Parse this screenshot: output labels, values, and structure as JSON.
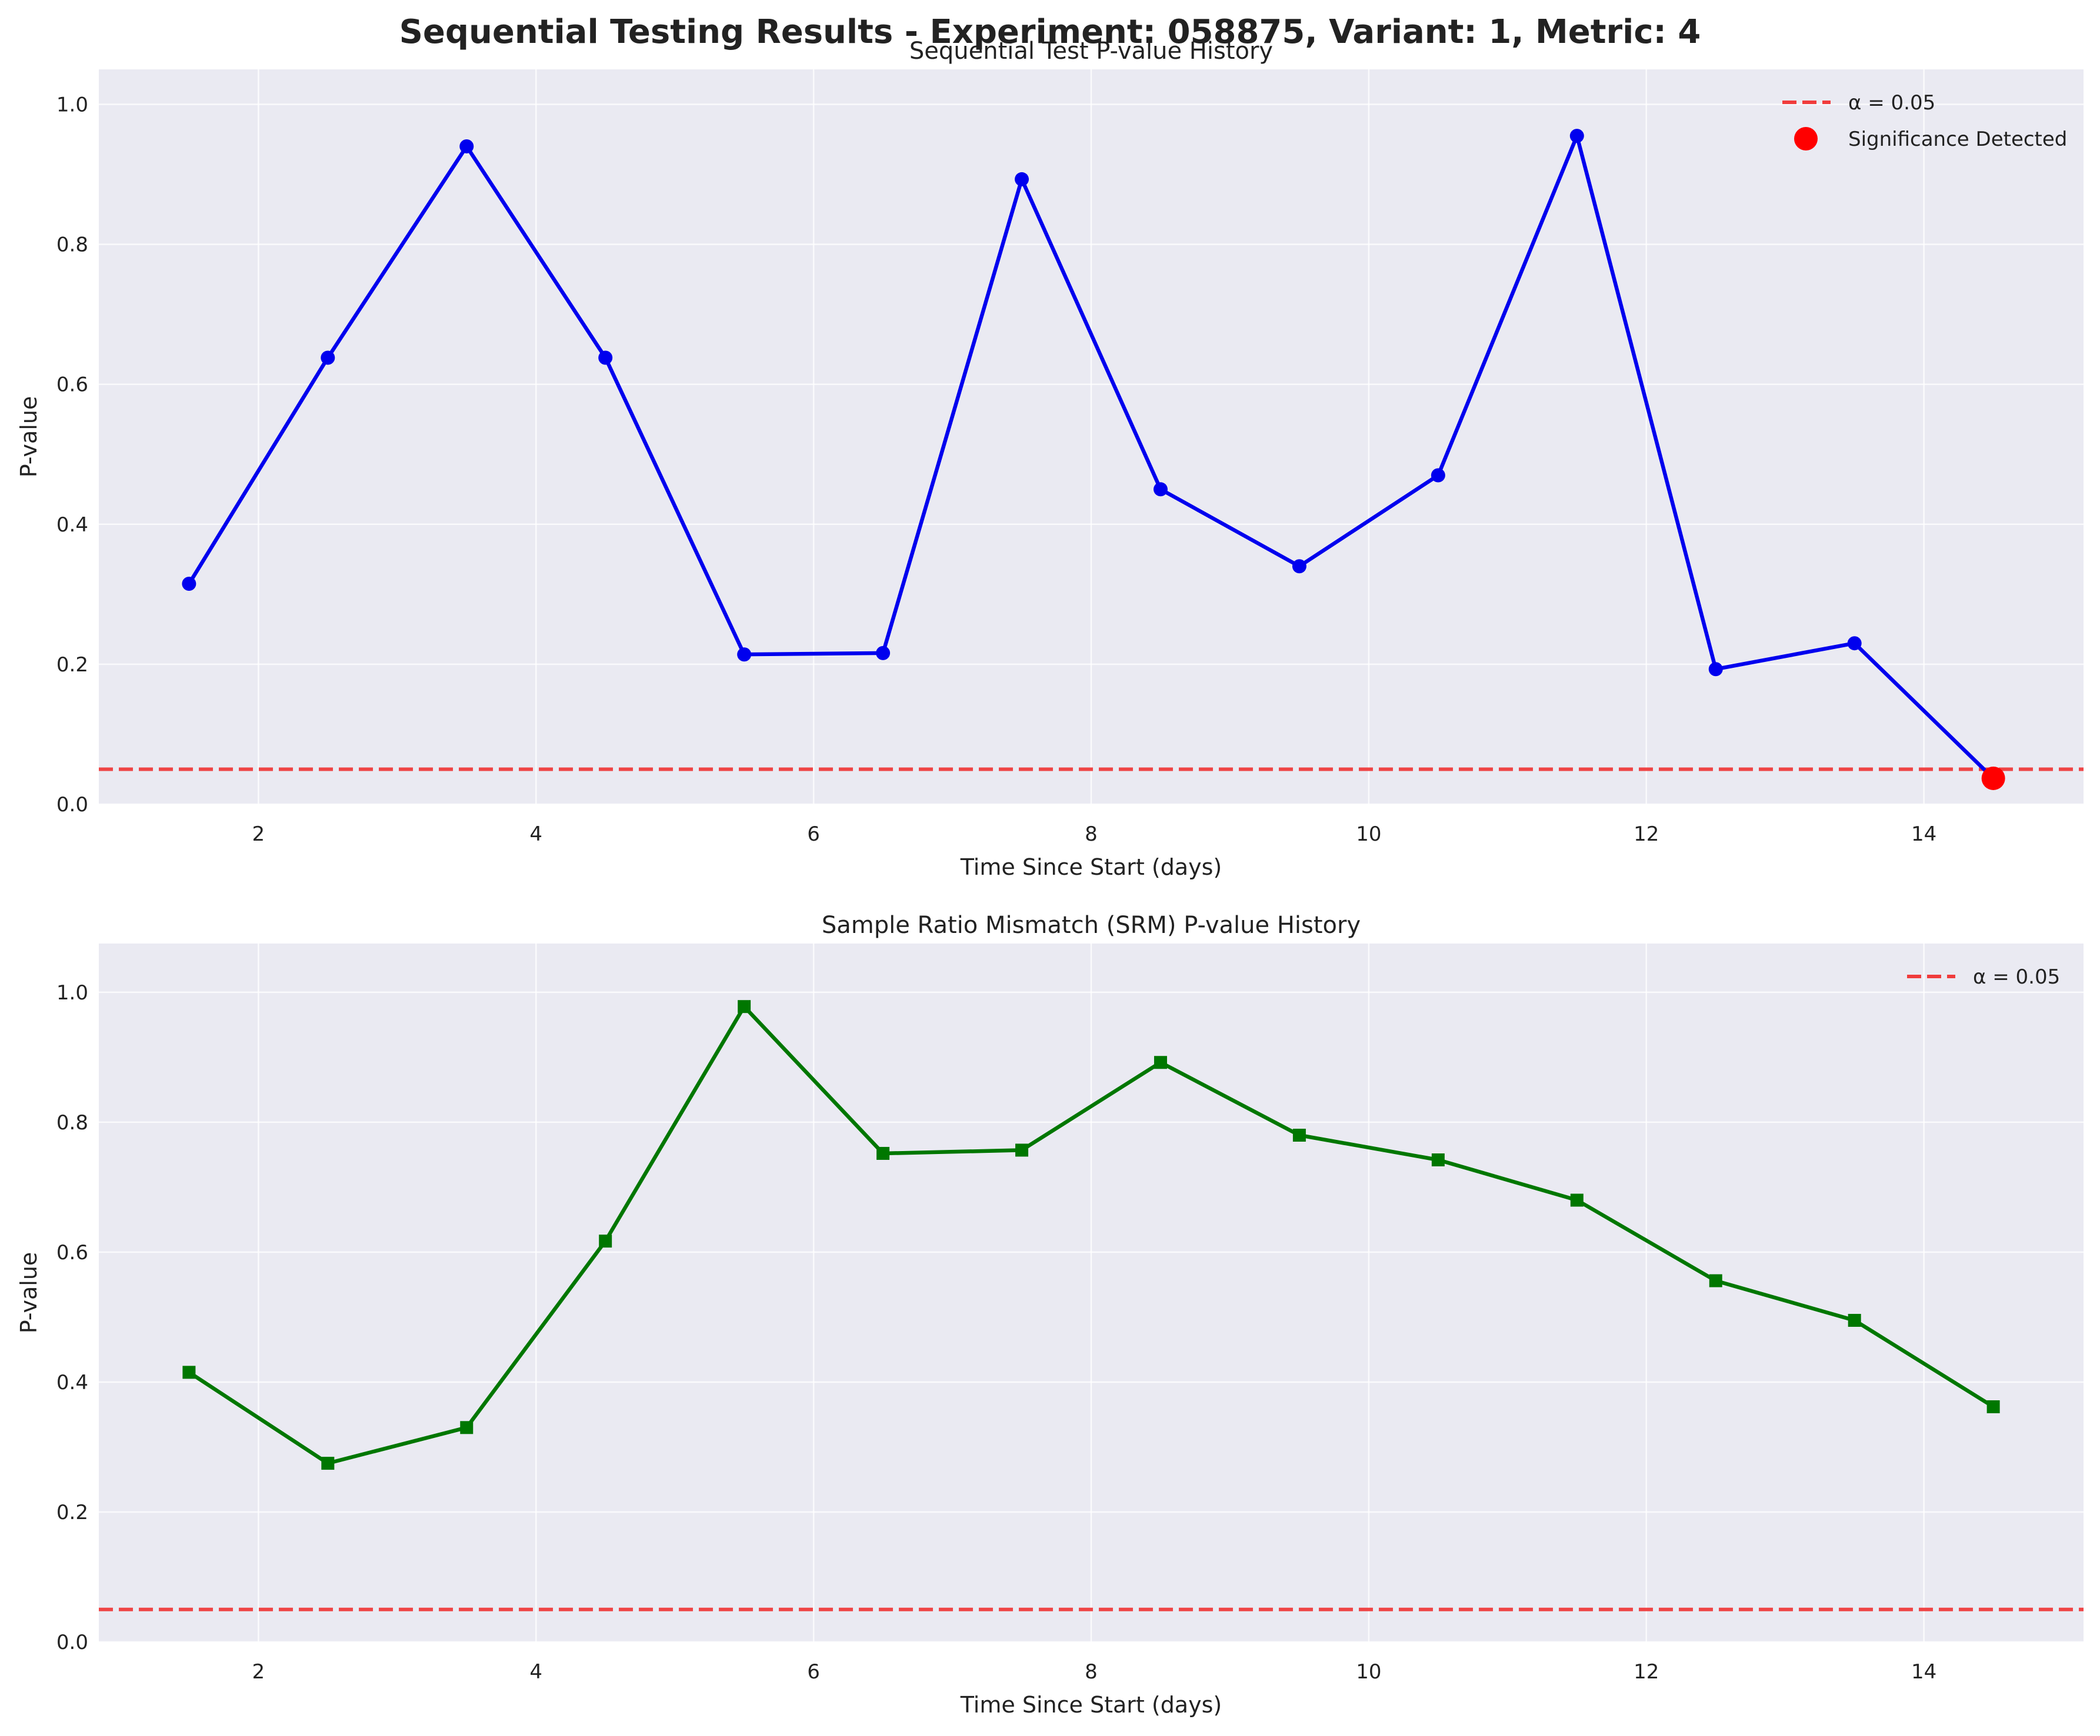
{
  "suptitle": "Sequential Testing Results - Experiment: 058875, Variant: 1, Metric: 4",
  "colors": {
    "plot_bg": "#eaeaf2",
    "grid": "#ffffff",
    "seq_line": "#0000ee",
    "srm_line": "#007700",
    "alpha_line": "#f03c3c",
    "significance": "#ff0000",
    "text": "#222222"
  },
  "chart_data": [
    {
      "type": "line",
      "title": "Sequential Test P-value History",
      "xlabel": "Time Since Start (days)",
      "ylabel": "P-value",
      "xlim": [
        0.85,
        15.15
      ],
      "ylim": [
        0,
        1.05
      ],
      "xticks": [
        2,
        4,
        6,
        8,
        10,
        12,
        14
      ],
      "yticks": [
        0.0,
        0.2,
        0.4,
        0.6,
        0.8,
        1.0
      ],
      "grid": true,
      "legend_position": "top-right",
      "marker": "circle",
      "x": [
        1.5,
        2.5,
        3.5,
        4.5,
        5.5,
        6.5,
        7.5,
        8.5,
        9.5,
        10.5,
        11.5,
        12.5,
        13.5,
        14.5
      ],
      "series": [
        {
          "values": [
            0.315,
            0.638,
            0.94,
            0.638,
            0.214,
            0.216,
            0.893,
            0.45,
            0.34,
            0.47,
            0.955,
            0.193,
            0.23,
            0.037
          ]
        }
      ],
      "reference_line": {
        "label": "α = 0.05",
        "y": 0.05
      },
      "significance_points": {
        "label": "Significance Detected",
        "x": [
          14.5
        ],
        "y": [
          0.037
        ]
      }
    },
    {
      "type": "line",
      "title": "Sample Ratio Mismatch (SRM) P-value History",
      "xlabel": "Time Since Start (days)",
      "ylabel": "P-value",
      "xlim": [
        0.85,
        15.15
      ],
      "ylim": [
        0,
        1.075
      ],
      "xticks": [
        2,
        4,
        6,
        8,
        10,
        12,
        14
      ],
      "yticks": [
        0.0,
        0.2,
        0.4,
        0.6,
        0.8,
        1.0
      ],
      "grid": true,
      "legend_position": "top-right",
      "marker": "square",
      "x": [
        1.5,
        2.5,
        3.5,
        4.5,
        5.5,
        6.5,
        7.5,
        8.5,
        9.5,
        10.5,
        11.5,
        12.5,
        13.5,
        14.5
      ],
      "series": [
        {
          "values": [
            0.415,
            0.275,
            0.33,
            0.617,
            0.978,
            0.752,
            0.757,
            0.892,
            0.78,
            0.742,
            0.68,
            0.556,
            0.495,
            0.362
          ]
        }
      ],
      "reference_line": {
        "label": "α = 0.05",
        "y": 0.05
      }
    }
  ]
}
